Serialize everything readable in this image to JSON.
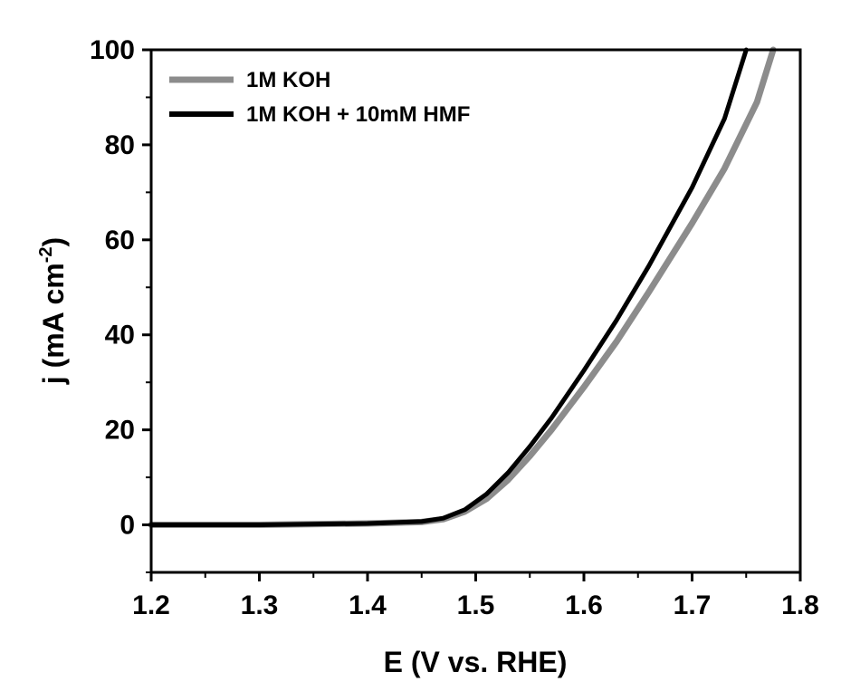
{
  "chart_data": {
    "type": "line",
    "xlabel": "E (V vs. RHE)",
    "ylabel": {
      "main": "j (mA cm",
      "sup": "-2",
      "close": ")"
    },
    "xlim": [
      1.2,
      1.8
    ],
    "ylim": [
      -10,
      100
    ],
    "x_ticks": [
      1.2,
      1.3,
      1.4,
      1.5,
      1.6,
      1.7,
      1.8
    ],
    "x_tick_labels": [
      "1.2",
      "1.3",
      "1.4",
      "1.5",
      "1.6",
      "1.7",
      "1.8"
    ],
    "y_ticks": [
      0,
      20,
      40,
      60,
      80,
      100
    ],
    "y_tick_labels": [
      "0",
      "20",
      "40",
      "60",
      "80",
      "100"
    ],
    "grid": false,
    "legend_position": "top-left",
    "series": [
      {
        "name": "1M KOH",
        "color": "#8c8c8c",
        "x": [
          1.2,
          1.3,
          1.4,
          1.45,
          1.47,
          1.49,
          1.51,
          1.53,
          1.55,
          1.57,
          1.6,
          1.63,
          1.66,
          1.7,
          1.73,
          1.76,
          1.775
        ],
        "y": [
          0,
          0,
          0.3,
          0.6,
          1.2,
          2.8,
          5.5,
          9.5,
          14.5,
          20.0,
          29.0,
          38.5,
          49.0,
          63.5,
          75.0,
          89.0,
          100.0
        ]
      },
      {
        "name": "1M KOH + 10mM HMF",
        "color": "#000000",
        "x": [
          1.2,
          1.3,
          1.4,
          1.45,
          1.47,
          1.49,
          1.51,
          1.53,
          1.55,
          1.57,
          1.6,
          1.63,
          1.66,
          1.7,
          1.73,
          1.75
        ],
        "y": [
          0,
          0,
          0.3,
          0.7,
          1.4,
          3.2,
          6.5,
          11.0,
          16.5,
          22.5,
          32.5,
          43.0,
          54.5,
          71.0,
          85.5,
          100.0
        ]
      }
    ]
  }
}
